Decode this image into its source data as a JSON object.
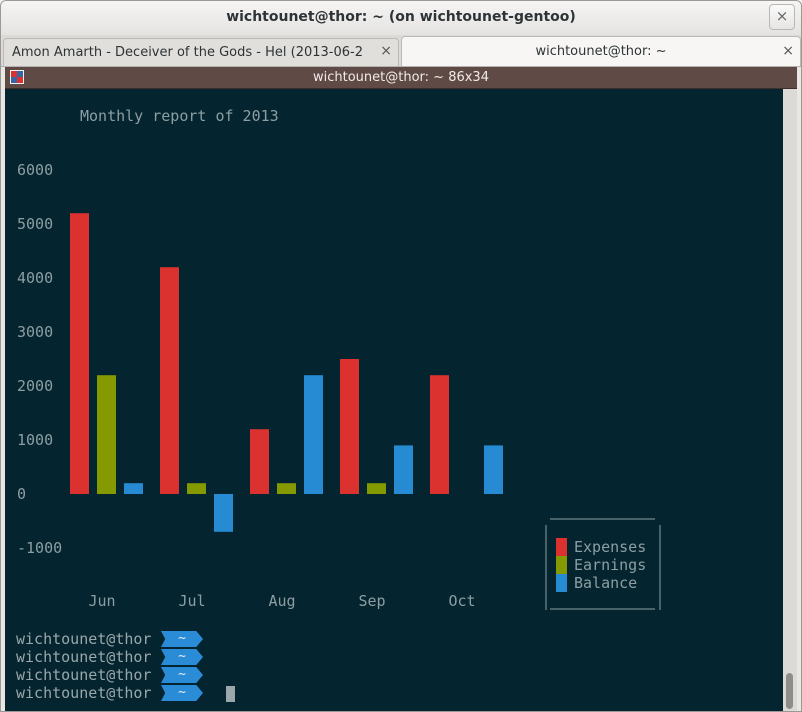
{
  "window": {
    "title": "wichtounet@thor: ~ (on wichtounet-gentoo)",
    "close_glyph": "×"
  },
  "tabs": [
    {
      "label": "Amon Amarth - Deceiver of the Gods - Hel (2013-06-2",
      "close_glyph": "×",
      "active": false
    },
    {
      "label": "wichtounet@thor: ~",
      "close_glyph": "×",
      "active": true
    }
  ],
  "terminal": {
    "title": "wichtounet@thor: ~ 86x34",
    "icon": "terminal-menu-icon"
  },
  "chart_data": {
    "type": "bar",
    "title": "Monthly report of 2013",
    "categories": [
      "Jun",
      "Jul",
      "Aug",
      "Sep",
      "Oct"
    ],
    "series": [
      {
        "name": "Expenses",
        "color": "#dc322f",
        "values": [
          5200,
          4200,
          1200,
          2500,
          2200
        ]
      },
      {
        "name": "Earnings",
        "color": "#859900",
        "values": [
          2200,
          200,
          200,
          200,
          0
        ]
      },
      {
        "name": "Balance",
        "color": "#268bd2",
        "values": [
          200,
          -700,
          2200,
          900,
          900
        ]
      }
    ],
    "ylim": [
      -1000,
      6000
    ],
    "yticks": [
      "6000",
      "5000",
      "4000",
      "3000",
      "2000",
      "1000",
      "0",
      "-1000"
    ],
    "legend_position": "bottom-right",
    "grid": false
  },
  "prompt": {
    "user": "wichtounet@thor",
    "dir": "~",
    "lines": 4
  },
  "colors": {
    "bg": "#04252f",
    "text": "#8d9ea3",
    "accent": "#2a8bd7"
  }
}
